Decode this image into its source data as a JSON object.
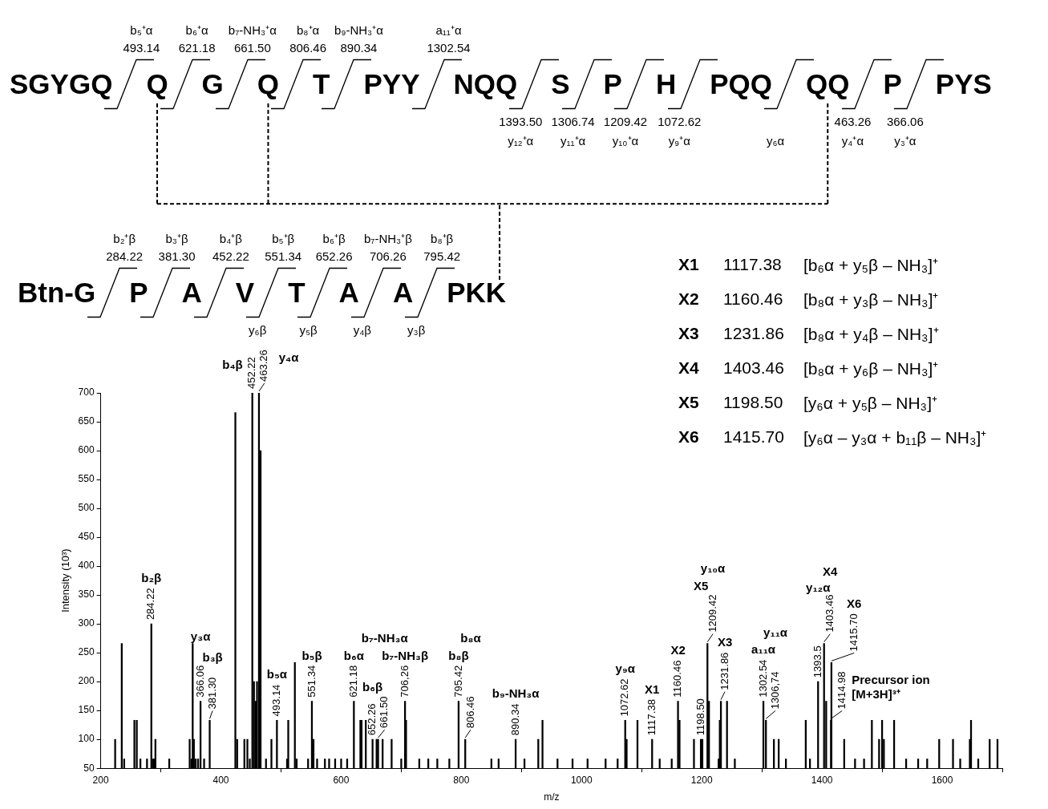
{
  "chart_data": [
    {
      "type": "other",
      "categories": [
        "SGYGQ",
        "Q",
        "G",
        "Q",
        "T",
        "PYY",
        "NQQ",
        "S",
        "P",
        "H",
        "PQQ",
        "QQ",
        "P",
        "PYS"
      ],
      "annotations": [
        "b₅⁺α",
        "493.14",
        "b₆⁺α",
        "621.18",
        "b₇-NH₃⁺α",
        "661.50",
        "b₈⁺α",
        "806.46",
        "b₉-NH₃⁺α",
        "890.34",
        "a₁₁⁺α",
        "1302.54",
        "1393.50",
        "y₁₂⁺α",
        "1306.74",
        "y₁₁⁺α",
        "1209.42",
        "y₁₀⁺α",
        "1072.62",
        "y₉⁺α",
        "y₆α",
        "463.26",
        "y₄⁺α",
        "366.06",
        "y₃⁺α"
      ]
    },
    {
      "type": "other",
      "categories": [
        "Btn-G",
        "P",
        "A",
        "V",
        "T",
        "A",
        "A",
        "PKK"
      ],
      "annotations": [
        "b₂⁺β",
        "284.22",
        "b₃⁺β",
        "381.30",
        "b₄⁺β",
        "452.22",
        "b₅⁺β",
        "551.34",
        "b₆⁺β",
        "652.26",
        "b₇-NH₃⁺β",
        "706.26",
        "b₈⁺β",
        "795.42",
        "y₆β",
        "y₅β",
        "y₄β",
        "y₃β"
      ]
    },
    {
      "type": "other",
      "annotations": [
        "X1",
        "1117.38",
        "[b₆α + y₅β – NH₃]⁺",
        "X2",
        "1160.46",
        "[b₈α + y₃β – NH₃]⁺",
        "X3",
        "1231.86",
        "[b₈α + y₄β – NH₃]⁺",
        "X4",
        "1403.46",
        "[b₈α + y₆β – NH₃]⁺",
        "X5",
        "1198.50",
        "[y₆α + y₅β – NH₃]⁺",
        "X6",
        "1415.70",
        "[y₆α – y₃α + b₁₁β – NH₃]⁺"
      ]
    },
    {
      "type": "bar",
      "xlabel": "m/z",
      "ylabel": "Intensity (10³)",
      "color": "#000000",
      "xlim": [
        200,
        1700
      ],
      "xticks": [
        200,
        400,
        600,
        800,
        1000,
        1200,
        1400,
        1600
      ],
      "ylim": [
        50,
        700
      ],
      "yticks": [
        50,
        100,
        150,
        200,
        250,
        300,
        350,
        400,
        450,
        500,
        550,
        600,
        650,
        700
      ],
      "x": [
        224,
        235,
        239,
        256,
        260,
        266,
        277,
        284.22,
        287,
        289,
        291,
        314,
        348,
        351,
        353,
        355,
        358,
        362,
        366.06,
        372,
        381.3,
        424,
        427,
        439,
        444,
        448,
        452.22,
        455,
        458,
        460,
        463.26,
        466,
        475,
        484,
        493.14,
        510,
        512,
        523,
        526,
        545,
        551.34,
        554,
        560,
        573,
        580,
        590,
        600,
        610,
        621.18,
        632,
        634,
        641,
        652.26,
        659,
        661.5,
        669,
        684,
        700,
        706.26,
        708,
        730,
        745,
        760,
        780,
        795.42,
        806.46,
        850,
        862,
        890.34,
        905,
        928,
        935,
        960,
        985,
        1010,
        1040,
        1060,
        1072.62,
        1075,
        1093,
        1117.38,
        1130,
        1150,
        1160.46,
        1163,
        1187,
        1198.5,
        1201,
        1209.42,
        1212,
        1228,
        1230,
        1231.86,
        1242,
        1255,
        1302.54,
        1306.74,
        1320,
        1328,
        1340,
        1373,
        1380,
        1393.5,
        1403.46,
        1407,
        1414.98,
        1415.7,
        1437,
        1455,
        1470,
        1483,
        1495,
        1500,
        1503,
        1520,
        1540,
        1560,
        1575,
        1595,
        1618,
        1630,
        1646,
        1648,
        1660,
        1679,
        1692
      ],
      "values": [
        100,
        266,
        66,
        133,
        133,
        66,
        66,
        300,
        66,
        66,
        100,
        66,
        100,
        66,
        266,
        100,
        66,
        66,
        166,
        66,
        133,
        666,
        100,
        100,
        100,
        66,
        700,
        200,
        166,
        200,
        700,
        600,
        66,
        100,
        133,
        66,
        133,
        233,
        66,
        66,
        166,
        100,
        66,
        66,
        66,
        66,
        66,
        66,
        166,
        133,
        133,
        133,
        100,
        100,
        100,
        100,
        100,
        66,
        166,
        133,
        66,
        66,
        66,
        66,
        166,
        100,
        66,
        66,
        100,
        66,
        100,
        133,
        66,
        66,
        66,
        66,
        66,
        133,
        100,
        133,
        100,
        66,
        66,
        166,
        133,
        100,
        100,
        100,
        266,
        166,
        66,
        133,
        166,
        166,
        66,
        166,
        133,
        100,
        100,
        66,
        133,
        66,
        200,
        266,
        166,
        133,
        233,
        100,
        66,
        66,
        133,
        100,
        133,
        100,
        133,
        66,
        66,
        66,
        100,
        100,
        66,
        100,
        133,
        66,
        100,
        100
      ],
      "annotations": [
        {
          "text": "284.22",
          "x": 284.22,
          "y": 300
        },
        "b₂β",
        {
          "text": "366.06",
          "x": 366.06,
          "y": 166
        },
        "y₃α",
        {
          "text": "381.30",
          "x": 381.3,
          "y": 133
        },
        "b₃β",
        {
          "text": "452.22",
          "x": 452.22,
          "y": 700
        },
        "b₄β",
        {
          "text": "463.26",
          "x": 463.26,
          "y": 700
        },
        "y₄α",
        {
          "text": "493.14",
          "x": 493.14,
          "y": 133
        },
        "b₅α",
        {
          "text": "551.34",
          "x": 551.34,
          "y": 166
        },
        "b₅β",
        {
          "text": "621.18",
          "x": 621.18,
          "y": 166
        },
        "b₆α",
        {
          "text": "652.26",
          "x": 652.26,
          "y": 100
        },
        "b₆β",
        {
          "text": "661.50",
          "x": 661.5,
          "y": 100
        },
        "b₇-NH₃α",
        {
          "text": "706,26",
          "x": 706.26,
          "y": 166
        },
        "b₇-NH₃β",
        {
          "text": "795.42",
          "x": 795.42,
          "y": 166
        },
        "b₈β",
        {
          "text": "806.46",
          "x": 806.46,
          "y": 100
        },
        "b₈α",
        {
          "text": "890.34",
          "x": 890.34,
          "y": 100
        },
        "b₉-NH₃α",
        {
          "text": "1072.62",
          "x": 1072.62,
          "y": 133
        },
        "y₉α",
        {
          "text": "1117.38",
          "x": 1117.38,
          "y": 100
        },
        "X1",
        {
          "text": "1160.46",
          "x": 1160.46,
          "y": 166
        },
        "X2",
        {
          "text": "1198.50",
          "x": 1198.5,
          "y": 100
        },
        "X5",
        {
          "text": "1209.42",
          "x": 1209.42,
          "y": 266
        },
        "y₁₀α",
        {
          "text": "1231.86",
          "x": 1231.86,
          "y": 166
        },
        "X3",
        {
          "text": "1302.54",
          "x": 1302.54,
          "y": 166
        },
        "a₁₁α",
        {
          "text": "1306,74",
          "x": 1306.74,
          "y": 133
        },
        "y₁₁α",
        {
          "text": "1393.5",
          "x": 1393.5,
          "y": 200
        },
        "y₁₂α",
        {
          "text": "1403.46",
          "x": 1403.46,
          "y": 266
        },
        "X4",
        {
          "text": "1414.98",
          "x": 1414.98,
          "y": 133
        },
        "Precursor ion\n[M+3H]³⁺",
        {
          "text": "1415.70",
          "x": 1415.7,
          "y": 233
        },
        "X6"
      ]
    }
  ]
}
